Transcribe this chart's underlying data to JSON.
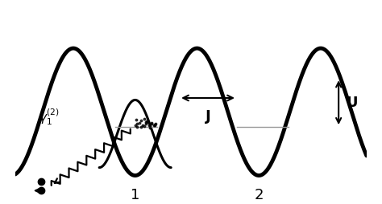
{
  "bg_color": "#ffffff",
  "outer_well_color": "#000000",
  "inner_well_color": "#000000",
  "outer_well_linewidth": 3.5,
  "inner_well_linewidth": 2.2,
  "label_1": "1",
  "label_2": "2",
  "label_J": "J",
  "label_U": "U",
  "label_gamma": "$\\gamma_1^{(2)}$",
  "energy_level_color": "#999999",
  "xlim": [
    -3.0,
    5.8
  ],
  "ylim": [
    -2.2,
    2.8
  ],
  "figsize": [
    4.74,
    2.54
  ],
  "dpi": 100
}
